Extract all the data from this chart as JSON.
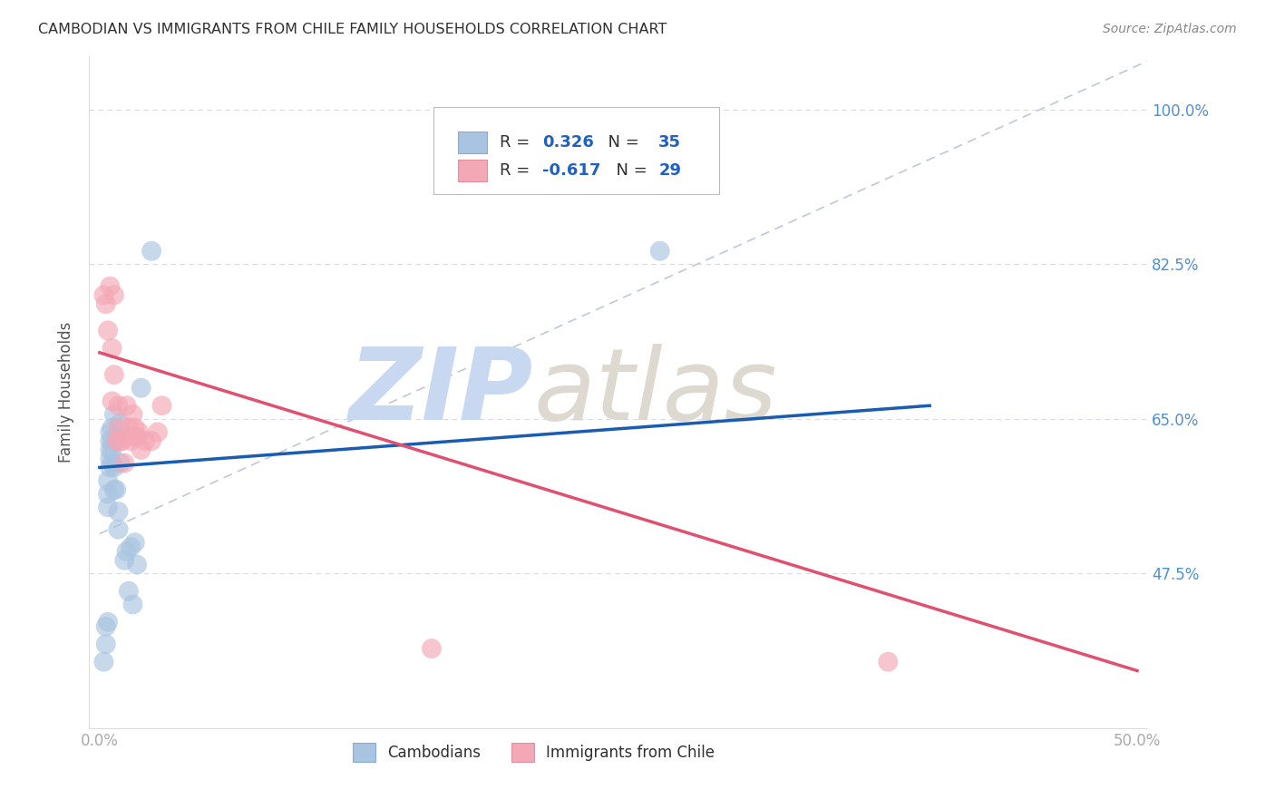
{
  "title": "CAMBODIAN VS IMMIGRANTS FROM CHILE FAMILY HOUSEHOLDS CORRELATION CHART",
  "source": "Source: ZipAtlas.com",
  "ylabel": "Family Households",
  "xlim": [
    -0.005,
    0.505
  ],
  "ylim": [
    0.3,
    1.06
  ],
  "yticks": [
    0.475,
    0.65,
    0.825,
    1.0
  ],
  "ytick_labels": [
    "47.5%",
    "65.0%",
    "82.5%",
    "100.0%"
  ],
  "xticks": [
    0.0,
    0.1,
    0.2,
    0.3,
    0.4,
    0.5
  ],
  "xtick_labels": [
    "0.0%",
    "",
    "",
    "",
    "",
    "50.0%"
  ],
  "blue_r": "0.326",
  "blue_n": "35",
  "pink_r": "-0.617",
  "pink_n": "29",
  "cambodian_color": "#a8c4e0",
  "chile_color": "#f4a7b5",
  "blue_line_color": "#1a5cb0",
  "pink_line_color": "#e05070",
  "watermark_zip_color": "#c8d8f0",
  "watermark_atlas_color": "#d0c8c0",
  "title_color": "#303030",
  "source_color": "#888888",
  "axis_label_color": "#555555",
  "tick_label_color": "#5090d0",
  "grid_color": "#d8dae8",
  "legend_label1": "Cambodians",
  "legend_label2": "Immigrants from Chile",
  "cambodian_x": [
    0.002,
    0.003,
    0.003,
    0.004,
    0.004,
    0.004,
    0.004,
    0.005,
    0.005,
    0.005,
    0.005,
    0.005,
    0.006,
    0.006,
    0.006,
    0.006,
    0.007,
    0.007,
    0.007,
    0.008,
    0.008,
    0.009,
    0.009,
    0.01,
    0.01,
    0.012,
    0.013,
    0.014,
    0.015,
    0.016,
    0.017,
    0.018,
    0.02,
    0.025,
    0.27
  ],
  "cambodian_y": [
    0.375,
    0.395,
    0.415,
    0.42,
    0.55,
    0.565,
    0.58,
    0.595,
    0.605,
    0.615,
    0.625,
    0.635,
    0.6,
    0.615,
    0.625,
    0.64,
    0.57,
    0.595,
    0.655,
    0.57,
    0.63,
    0.525,
    0.545,
    0.6,
    0.645,
    0.49,
    0.5,
    0.455,
    0.505,
    0.44,
    0.51,
    0.485,
    0.685,
    0.84,
    0.84
  ],
  "chile_x": [
    0.002,
    0.003,
    0.004,
    0.005,
    0.006,
    0.006,
    0.007,
    0.007,
    0.008,
    0.009,
    0.009,
    0.01,
    0.011,
    0.012,
    0.013,
    0.014,
    0.015,
    0.016,
    0.016,
    0.017,
    0.018,
    0.019,
    0.02,
    0.022,
    0.025,
    0.028,
    0.03,
    0.16,
    0.38
  ],
  "chile_y": [
    0.79,
    0.78,
    0.75,
    0.8,
    0.73,
    0.67,
    0.7,
    0.79,
    0.625,
    0.64,
    0.665,
    0.625,
    0.625,
    0.6,
    0.665,
    0.64,
    0.625,
    0.63,
    0.655,
    0.64,
    0.63,
    0.635,
    0.615,
    0.625,
    0.625,
    0.635,
    0.665,
    0.39,
    0.375
  ],
  "blue_line_x": [
    0.0,
    0.4
  ],
  "blue_line_y": [
    0.595,
    0.665
  ],
  "pink_line_x": [
    0.0,
    0.5
  ],
  "pink_line_y": [
    0.725,
    0.365
  ],
  "diag_line_x": [
    0.0,
    0.505
  ],
  "diag_line_y": [
    0.52,
    1.055
  ]
}
